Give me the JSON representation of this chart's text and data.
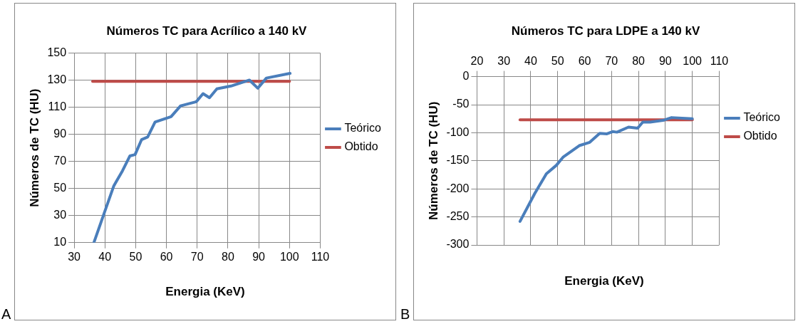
{
  "chart_data": [
    {
      "type": "line",
      "title": "Números TC para Acrílico a 140 kV",
      "xlabel": "Energia (KeV)",
      "ylabel": "Números de TC (HU)",
      "annotations": [
        "A"
      ],
      "xlim": [
        30,
        110
      ],
      "xticks": [
        30,
        40,
        50,
        60,
        70,
        80,
        90,
        100,
        110
      ],
      "ylim": [
        10,
        150
      ],
      "yticks": [
        10,
        30,
        50,
        70,
        90,
        110,
        130,
        150
      ],
      "grid": true,
      "legend": "right",
      "marker": "none",
      "series": [
        {
          "name": "Teórico",
          "color": "#4a7ebb",
          "x": [
            36.4,
            39.8,
            42.9,
            45.7,
            48.1,
            49.8,
            51.9,
            53.9,
            56.3,
            61.5,
            64.6,
            69.7,
            71.9,
            74,
            76.4,
            81,
            87,
            89.7,
            92.5,
            100.2
          ],
          "values": [
            10,
            32,
            52,
            63,
            74,
            75,
            86,
            88,
            99,
            103,
            111,
            114,
            120,
            117,
            123.5,
            125.6,
            130,
            124,
            131.5,
            135
          ]
        },
        {
          "name": "Obtido",
          "color": "#be4b48",
          "x": [
            36,
            100
          ],
          "values": [
            129,
            129
          ]
        }
      ]
    },
    {
      "type": "line",
      "title": "Números TC para LDPE a 140 kV",
      "xlabel": "Energia (KeV)",
      "ylabel": "Números de TC (HU)",
      "annotations": [
        "B"
      ],
      "xlim": [
        20,
        110
      ],
      "xticks": [
        20,
        30,
        40,
        50,
        60,
        70,
        80,
        90,
        100,
        110
      ],
      "ylim": [
        -300,
        0
      ],
      "yticks": [
        -300,
        -250,
        -200,
        -150,
        -100,
        -50,
        0
      ],
      "grid": true,
      "legend": "right",
      "marker": "none",
      "series": [
        {
          "name": "Teórico",
          "color": "#4a7ebb",
          "x": [
            36,
            41.5,
            45.8,
            49.5,
            52.1,
            58,
            61.9,
            65.6,
            68.3,
            70.4,
            72,
            76.3,
            79.7,
            81.6,
            84.3,
            89.1,
            92.3,
            100
          ],
          "values": [
            -258,
            -208,
            -173,
            -158,
            -143,
            -123,
            -117,
            -101,
            -102,
            -98,
            -99,
            -90,
            -92,
            -81,
            -81,
            -78,
            -73,
            -75
          ]
        },
        {
          "name": "Obtido",
          "color": "#be4b48",
          "x": [
            36,
            100
          ],
          "values": [
            -77,
            -77
          ]
        }
      ]
    }
  ]
}
